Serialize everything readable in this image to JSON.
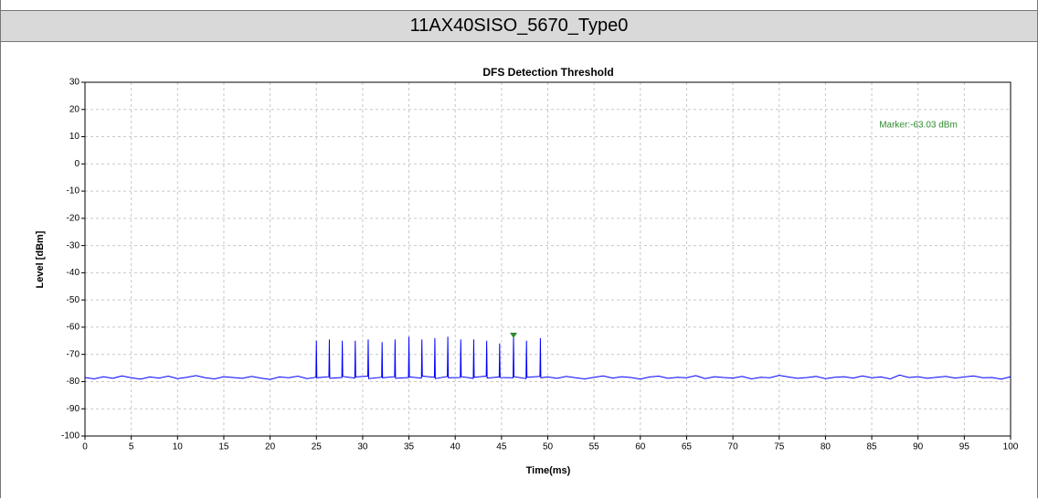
{
  "header": {
    "title": "11AX40SISO_5670_Type0"
  },
  "chart_data": {
    "type": "line",
    "title": "DFS Detection Threshold",
    "xlabel": "Time(ms)",
    "ylabel": "Level [dBm]",
    "xlim": [
      0,
      100
    ],
    "ylim": [
      -100,
      30
    ],
    "xticks": [
      0,
      5,
      10,
      15,
      20,
      25,
      30,
      35,
      40,
      45,
      50,
      55,
      60,
      65,
      70,
      75,
      80,
      85,
      90,
      95,
      100
    ],
    "yticks": [
      -100,
      -90,
      -80,
      -70,
      -60,
      -50,
      -40,
      -30,
      -20,
      -10,
      0,
      10,
      20,
      30
    ],
    "grid": true,
    "marker": {
      "x": 46.3,
      "y": -63.03,
      "label": "Marker:-63.03 dBm",
      "color": "#2e8b2e"
    },
    "series": [
      {
        "name": "Level",
        "color": "#0000ff",
        "x": [
          0,
          1,
          2,
          3,
          4,
          5,
          6,
          7,
          8,
          9,
          10,
          11,
          12,
          13,
          14,
          15,
          16,
          17,
          18,
          19,
          20,
          21,
          22,
          23,
          24,
          24.95,
          25,
          25.05,
          26.35,
          26.4,
          26.45,
          27.75,
          27.8,
          27.85,
          29.15,
          29.2,
          29.25,
          30.55,
          30.6,
          30.65,
          32.05,
          32.1,
          32.15,
          33.45,
          33.5,
          33.55,
          34.95,
          35,
          35.05,
          36.35,
          36.4,
          36.45,
          37.75,
          37.8,
          37.85,
          39.15,
          39.2,
          39.25,
          40.55,
          40.6,
          40.65,
          41.95,
          42,
          42.05,
          43.35,
          43.4,
          43.45,
          44.75,
          44.8,
          44.85,
          46.25,
          46.3,
          46.35,
          47.65,
          47.7,
          47.75,
          49.15,
          49.2,
          49.25,
          50,
          51,
          52,
          53,
          54,
          55,
          56,
          57,
          58,
          59,
          60,
          61,
          62,
          63,
          64,
          65,
          66,
          67,
          68,
          69,
          70,
          71,
          72,
          73,
          74,
          75,
          76,
          77,
          78,
          79,
          80,
          81,
          82,
          83,
          84,
          85,
          86,
          87,
          88,
          89,
          90,
          91,
          92,
          93,
          94,
          95,
          96,
          97,
          98,
          99,
          100
        ],
        "values": [
          -78.5,
          -79,
          -78.2,
          -78.8,
          -77.9,
          -78.6,
          -79.1,
          -78.3,
          -78.7,
          -78,
          -78.9,
          -78.4,
          -77.8,
          -78.6,
          -79,
          -78.2,
          -78.5,
          -78.8,
          -78.1,
          -78.7,
          -79.2,
          -78.3,
          -78.6,
          -78,
          -78.9,
          -78.4,
          -65,
          -78.6,
          -78.2,
          -64.5,
          -78.8,
          -78.5,
          -65,
          -78.1,
          -78.7,
          -65,
          -78.3,
          -78,
          -64.5,
          -78.9,
          -78.4,
          -65.5,
          -78.6,
          -78.2,
          -64.5,
          -78.8,
          -78.5,
          -63.5,
          -78.3,
          -78.7,
          -64.5,
          -78,
          -78.4,
          -64,
          -78.9,
          -78.1,
          -63.5,
          -78.6,
          -78.5,
          -64.5,
          -78.2,
          -78.8,
          -64.5,
          -78.4,
          -78,
          -65,
          -78.7,
          -78.3,
          -66,
          -78.5,
          -78.6,
          -63.5,
          -78.2,
          -78.9,
          -65,
          -78.4,
          -78.1,
          -64,
          -78.6,
          -78.3,
          -78.8,
          -78.1,
          -78.6,
          -79,
          -78.4,
          -77.9,
          -78.7,
          -78.2,
          -78.5,
          -79.1,
          -78.3,
          -78,
          -78.8,
          -78.4,
          -78.6,
          -77.8,
          -78.9,
          -78.2,
          -78.5,
          -78.7,
          -78.1,
          -79,
          -78.4,
          -78.6,
          -77.7,
          -78.3,
          -78.8,
          -78.5,
          -78.1,
          -78.9,
          -78.4,
          -78.2,
          -78.7,
          -77.9,
          -78.6,
          -78.3,
          -79,
          -77.6,
          -78.5,
          -78.2,
          -78.8,
          -78.4,
          -78.1,
          -78.7,
          -78.3,
          -77.9,
          -78.6,
          -78.5,
          -79.1,
          -78.2
        ]
      }
    ]
  }
}
